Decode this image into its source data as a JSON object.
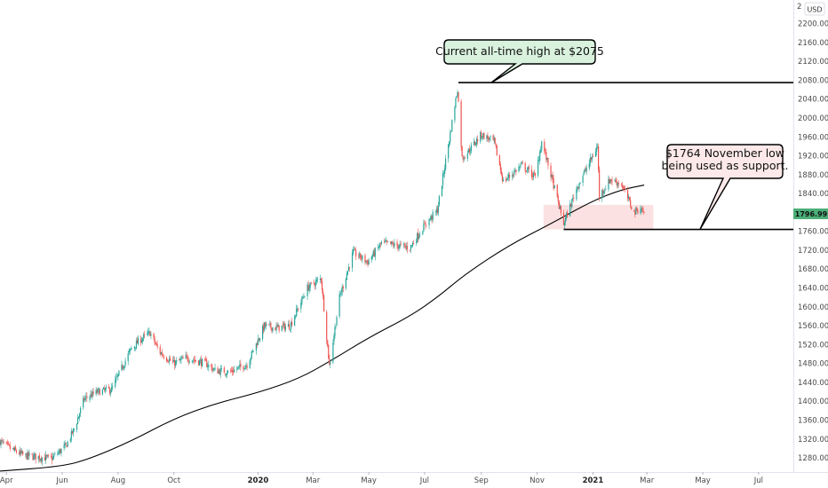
{
  "chart_data": {
    "type": "candlestick",
    "currency": "USD",
    "ylim": [
      1250,
      2250
    ],
    "y_ticks": [
      1280,
      1320,
      1360,
      1400,
      1440,
      1480,
      1520,
      1560,
      1600,
      1640,
      1680,
      1720,
      1760,
      1800,
      1840,
      1880,
      1920,
      1960,
      2000,
      2040,
      2080,
      2120,
      2160,
      2200
    ],
    "y_tick_labels": [
      "1280.00",
      "1320.00",
      "1360.00",
      "1400.00",
      "1440.00",
      "1480.00",
      "1520.00",
      "1560.00",
      "1600.00",
      "1640.00",
      "1680.00",
      "1720.00",
      "1760.00",
      "1800.00",
      "1840.00",
      "1880.00",
      "1920.00",
      "1960.00",
      "2000.00",
      "2040.00",
      "2080.00",
      "2120.00",
      "2160.00",
      "2200.00"
    ],
    "top_cut_label": "2",
    "x_labels": [
      {
        "label": "Apr",
        "date": "2019-04-01",
        "bold": false
      },
      {
        "label": "Jun",
        "date": "2019-06-01",
        "bold": false
      },
      {
        "label": "Aug",
        "date": "2019-08-01",
        "bold": false
      },
      {
        "label": "Oct",
        "date": "2019-10-01",
        "bold": false
      },
      {
        "label": "2020",
        "date": "2020-01-01",
        "bold": true
      },
      {
        "label": "Mar",
        "date": "2020-03-01",
        "bold": false
      },
      {
        "label": "May",
        "date": "2020-05-01",
        "bold": false
      },
      {
        "label": "Jul",
        "date": "2020-07-01",
        "bold": false
      },
      {
        "label": "Sep",
        "date": "2020-09-01",
        "bold": false
      },
      {
        "label": "Nov",
        "date": "2020-11-01",
        "bold": false
      },
      {
        "label": "2021",
        "date": "2021-01-01",
        "bold": true
      },
      {
        "label": "Mar",
        "date": "2021-03-01",
        "bold": false
      },
      {
        "label": "May",
        "date": "2021-05-01",
        "bold": false
      },
      {
        "label": "Jul",
        "date": "2021-07-01",
        "bold": false
      }
    ],
    "x_range": [
      "2019-03-25",
      "2021-08-08"
    ],
    "last_price": "1796.99",
    "last_price_value": 1796.99,
    "price_path": [
      [
        "2019-03-25",
        1315
      ],
      [
        "2019-04-05",
        1300
      ],
      [
        "2019-04-20",
        1285
      ],
      [
        "2019-05-05",
        1282
      ],
      [
        "2019-05-20",
        1278
      ],
      [
        "2019-06-05",
        1305
      ],
      [
        "2019-06-15",
        1345
      ],
      [
        "2019-06-25",
        1405
      ],
      [
        "2019-07-10",
        1420
      ],
      [
        "2019-07-25",
        1425
      ],
      [
        "2019-08-05",
        1470
      ],
      [
        "2019-08-15",
        1510
      ],
      [
        "2019-08-25",
        1530
      ],
      [
        "2019-09-05",
        1545
      ],
      [
        "2019-09-15",
        1505
      ],
      [
        "2019-10-01",
        1480
      ],
      [
        "2019-10-15",
        1492
      ],
      [
        "2019-11-05",
        1480
      ],
      [
        "2019-11-15",
        1465
      ],
      [
        "2019-12-01",
        1462
      ],
      [
        "2019-12-20",
        1478
      ],
      [
        "2020-01-08",
        1560
      ],
      [
        "2020-01-20",
        1555
      ],
      [
        "2020-02-05",
        1560
      ],
      [
        "2020-02-24",
        1640
      ],
      [
        "2020-03-10",
        1660
      ],
      [
        "2020-03-19",
        1475
      ],
      [
        "2020-03-30",
        1620
      ],
      [
        "2020-04-14",
        1715
      ],
      [
        "2020-04-30",
        1695
      ],
      [
        "2020-05-15",
        1735
      ],
      [
        "2020-06-01",
        1730
      ],
      [
        "2020-06-15",
        1725
      ],
      [
        "2020-06-30",
        1770
      ],
      [
        "2020-07-15",
        1805
      ],
      [
        "2020-07-28",
        1955
      ],
      [
        "2020-08-06",
        2062
      ],
      [
        "2020-08-11",
        1915
      ],
      [
        "2020-08-20",
        1935
      ],
      [
        "2020-09-01",
        1965
      ],
      [
        "2020-09-15",
        1950
      ],
      [
        "2020-09-25",
        1865
      ],
      [
        "2020-10-15",
        1900
      ],
      [
        "2020-10-30",
        1875
      ],
      [
        "2020-11-06",
        1950
      ],
      [
        "2020-11-16",
        1880
      ],
      [
        "2020-11-30",
        1776
      ],
      [
        "2020-12-15",
        1855
      ],
      [
        "2021-01-06",
        1940
      ],
      [
        "2021-01-08",
        1835
      ],
      [
        "2021-01-20",
        1870
      ],
      [
        "2021-02-01",
        1860
      ],
      [
        "2021-02-15",
        1800
      ],
      [
        "2021-02-22",
        1810
      ],
      [
        "2021-02-26",
        1797
      ]
    ],
    "moving_average": [
      [
        "2019-03-25",
        1252
      ],
      [
        "2019-06-01",
        1262
      ],
      [
        "2019-07-01",
        1278
      ],
      [
        "2019-08-15",
        1315
      ],
      [
        "2019-10-01",
        1363
      ],
      [
        "2019-11-15",
        1395
      ],
      [
        "2020-01-01",
        1418
      ],
      [
        "2020-02-15",
        1448
      ],
      [
        "2020-03-20",
        1485
      ],
      [
        "2020-05-01",
        1535
      ],
      [
        "2020-06-15",
        1580
      ],
      [
        "2020-07-15",
        1620
      ],
      [
        "2020-08-15",
        1670
      ],
      [
        "2020-10-01",
        1730
      ],
      [
        "2020-11-15",
        1775
      ],
      [
        "2021-01-01",
        1825
      ],
      [
        "2021-02-01",
        1848
      ],
      [
        "2021-02-26",
        1858
      ]
    ],
    "levels": [
      {
        "name": "all-time-high",
        "value": 2075,
        "from": "2020-08-07",
        "to": "2021-08-08"
      },
      {
        "name": "november-low",
        "value": 1764,
        "from": "2020-11-30",
        "to": "2021-08-08"
      }
    ],
    "support_zone": {
      "from": "2020-11-08",
      "to": "2021-03-08",
      "low": 1764,
      "high": 1816
    },
    "callouts": [
      {
        "name": "ath-callout",
        "lines": [
          "Current all-time high at $2075"
        ],
        "bg": "#d9f2de",
        "anchor_date": "2020-09-12",
        "anchor_value": 2075
      },
      {
        "name": "support-callout",
        "lines": [
          "$1764 November low",
          "being used as support."
        ],
        "bg": "#fde9e9",
        "anchor_date": "2021-04-28",
        "anchor_value": 1764
      }
    ],
    "colors": {
      "up": "#26a69a",
      "down": "#ef5350",
      "ma": "#000000",
      "zone": "#f8c9c9",
      "price_label": "#4caf78"
    }
  }
}
